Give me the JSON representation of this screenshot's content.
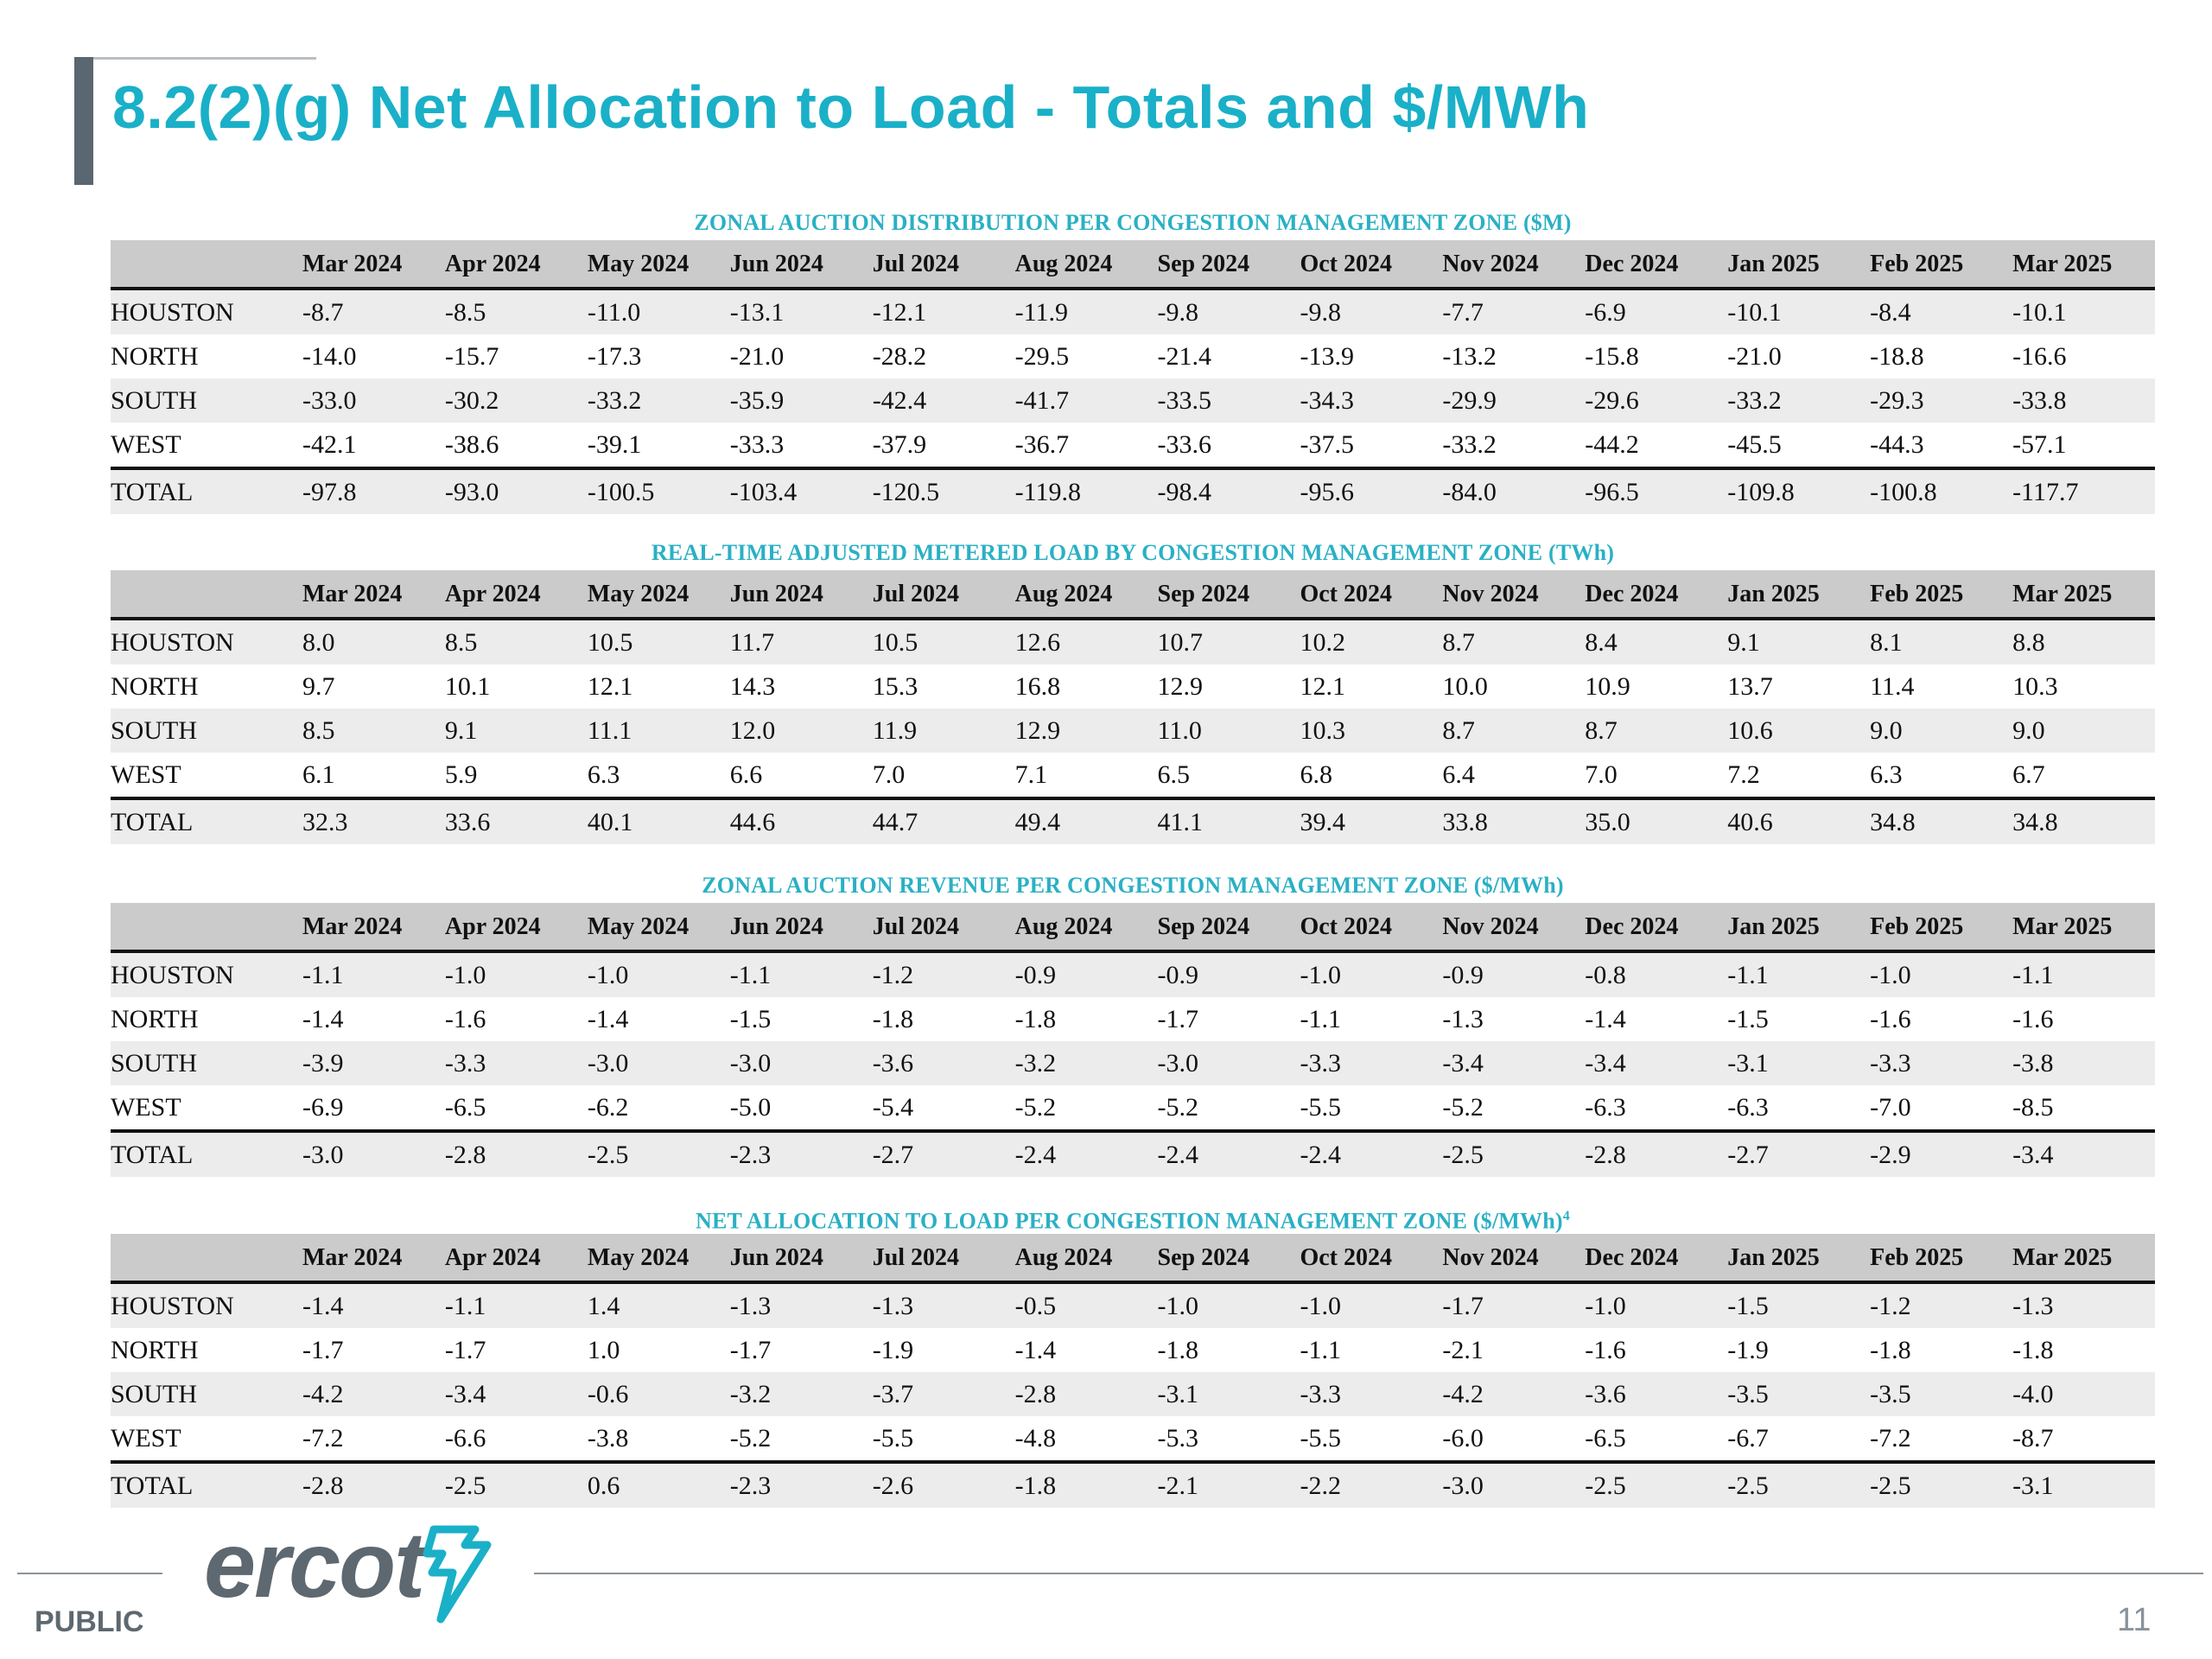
{
  "title": "8.2(2)(g) Net Allocation to Load - Totals and $/MWh",
  "months": [
    "Mar 2024",
    "Apr 2024",
    "May 2024",
    "Jun 2024",
    "Jul 2024",
    "Aug 2024",
    "Sep 2024",
    "Oct 2024",
    "Nov 2024",
    "Dec 2024",
    "Jan 2025",
    "Feb 2025",
    "Mar 2025"
  ],
  "tables": [
    {
      "title": "ZONAL AUCTION DISTRIBUTION PER CONGESTION MANAGEMENT ZONE ($M)",
      "superscript": "",
      "rows": [
        {
          "zone": "HOUSTON",
          "values": [
            "-8.7",
            "-8.5",
            "-11.0",
            "-13.1",
            "-12.1",
            "-11.9",
            "-9.8",
            "-9.8",
            "-7.7",
            "-6.9",
            "-10.1",
            "-8.4",
            "-10.1"
          ]
        },
        {
          "zone": "NORTH",
          "values": [
            "-14.0",
            "-15.7",
            "-17.3",
            "-21.0",
            "-28.2",
            "-29.5",
            "-21.4",
            "-13.9",
            "-13.2",
            "-15.8",
            "-21.0",
            "-18.8",
            "-16.6"
          ]
        },
        {
          "zone": "SOUTH",
          "values": [
            "-33.0",
            "-30.2",
            "-33.2",
            "-35.9",
            "-42.4",
            "-41.7",
            "-33.5",
            "-34.3",
            "-29.9",
            "-29.6",
            "-33.2",
            "-29.3",
            "-33.8"
          ]
        },
        {
          "zone": "WEST",
          "values": [
            "-42.1",
            "-38.6",
            "-39.1",
            "-33.3",
            "-37.9",
            "-36.7",
            "-33.6",
            "-37.5",
            "-33.2",
            "-44.2",
            "-45.5",
            "-44.3",
            "-57.1"
          ]
        },
        {
          "zone": "TOTAL",
          "values": [
            "-97.8",
            "-93.0",
            "-100.5",
            "-103.4",
            "-120.5",
            "-119.8",
            "-98.4",
            "-95.6",
            "-84.0",
            "-96.5",
            "-109.8",
            "-100.8",
            "-117.7"
          ]
        }
      ]
    },
    {
      "title": "REAL-TIME ADJUSTED METERED LOAD BY CONGESTION MANAGEMENT ZONE (TWh)",
      "superscript": "",
      "rows": [
        {
          "zone": "HOUSTON",
          "values": [
            "8.0",
            "8.5",
            "10.5",
            "11.7",
            "10.5",
            "12.6",
            "10.7",
            "10.2",
            "8.7",
            "8.4",
            "9.1",
            "8.1",
            "8.8"
          ]
        },
        {
          "zone": "NORTH",
          "values": [
            "9.7",
            "10.1",
            "12.1",
            "14.3",
            "15.3",
            "16.8",
            "12.9",
            "12.1",
            "10.0",
            "10.9",
            "13.7",
            "11.4",
            "10.3"
          ]
        },
        {
          "zone": "SOUTH",
          "values": [
            "8.5",
            "9.1",
            "11.1",
            "12.0",
            "11.9",
            "12.9",
            "11.0",
            "10.3",
            "8.7",
            "8.7",
            "10.6",
            "9.0",
            "9.0"
          ]
        },
        {
          "zone": "WEST",
          "values": [
            "6.1",
            "5.9",
            "6.3",
            "6.6",
            "7.0",
            "7.1",
            "6.5",
            "6.8",
            "6.4",
            "7.0",
            "7.2",
            "6.3",
            "6.7"
          ]
        },
        {
          "zone": "TOTAL",
          "values": [
            "32.3",
            "33.6",
            "40.1",
            "44.6",
            "44.7",
            "49.4",
            "41.1",
            "39.4",
            "33.8",
            "35.0",
            "40.6",
            "34.8",
            "34.8"
          ]
        }
      ]
    },
    {
      "title": "ZONAL AUCTION REVENUE PER CONGESTION MANAGEMENT ZONE ($/MWh)",
      "superscript": "",
      "rows": [
        {
          "zone": "HOUSTON",
          "values": [
            "-1.1",
            "-1.0",
            "-1.0",
            "-1.1",
            "-1.2",
            "-0.9",
            "-0.9",
            "-1.0",
            "-0.9",
            "-0.8",
            "-1.1",
            "-1.0",
            "-1.1"
          ]
        },
        {
          "zone": "NORTH",
          "values": [
            "-1.4",
            "-1.6",
            "-1.4",
            "-1.5",
            "-1.8",
            "-1.8",
            "-1.7",
            "-1.1",
            "-1.3",
            "-1.4",
            "-1.5",
            "-1.6",
            "-1.6"
          ]
        },
        {
          "zone": "SOUTH",
          "values": [
            "-3.9",
            "-3.3",
            "-3.0",
            "-3.0",
            "-3.6",
            "-3.2",
            "-3.0",
            "-3.3",
            "-3.4",
            "-3.4",
            "-3.1",
            "-3.3",
            "-3.8"
          ]
        },
        {
          "zone": "WEST",
          "values": [
            "-6.9",
            "-6.5",
            "-6.2",
            "-5.0",
            "-5.4",
            "-5.2",
            "-5.2",
            "-5.5",
            "-5.2",
            "-6.3",
            "-6.3",
            "-7.0",
            "-8.5"
          ]
        },
        {
          "zone": "TOTAL",
          "values": [
            "-3.0",
            "-2.8",
            "-2.5",
            "-2.3",
            "-2.7",
            "-2.4",
            "-2.4",
            "-2.4",
            "-2.5",
            "-2.8",
            "-2.7",
            "-2.9",
            "-3.4"
          ]
        }
      ]
    },
    {
      "title": "NET ALLOCATION TO LOAD PER CONGESTION MANAGEMENT ZONE ($/MWh)",
      "superscript": "4",
      "rows": [
        {
          "zone": "HOUSTON",
          "values": [
            "-1.4",
            "-1.1",
            "1.4",
            "-1.3",
            "-1.3",
            "-0.5",
            "-1.0",
            "-1.0",
            "-1.7",
            "-1.0",
            "-1.5",
            "-1.2",
            "-1.3"
          ]
        },
        {
          "zone": "NORTH",
          "values": [
            "-1.7",
            "-1.7",
            "1.0",
            "-1.7",
            "-1.9",
            "-1.4",
            "-1.8",
            "-1.1",
            "-2.1",
            "-1.6",
            "-1.9",
            "-1.8",
            "-1.8"
          ]
        },
        {
          "zone": "SOUTH",
          "values": [
            "-4.2",
            "-3.4",
            "-0.6",
            "-3.2",
            "-3.7",
            "-2.8",
            "-3.1",
            "-3.3",
            "-4.2",
            "-3.6",
            "-3.5",
            "-3.5",
            "-4.0"
          ]
        },
        {
          "zone": "WEST",
          "values": [
            "-7.2",
            "-6.6",
            "-3.8",
            "-5.2",
            "-5.5",
            "-4.8",
            "-5.3",
            "-5.5",
            "-6.0",
            "-6.5",
            "-6.7",
            "-7.2",
            "-8.7"
          ]
        },
        {
          "zone": "TOTAL",
          "values": [
            "-2.8",
            "-2.5",
            "0.6",
            "-2.3",
            "-2.6",
            "-1.8",
            "-2.1",
            "-2.2",
            "-3.0",
            "-2.5",
            "-2.5",
            "-2.5",
            "-3.1"
          ]
        }
      ]
    }
  ],
  "footer": {
    "logo_text": "ercot",
    "classification": "PUBLIC",
    "page_number": "11",
    "colors": {
      "accent": "#1ab0c8",
      "logo_gray": "#5d6870"
    }
  }
}
